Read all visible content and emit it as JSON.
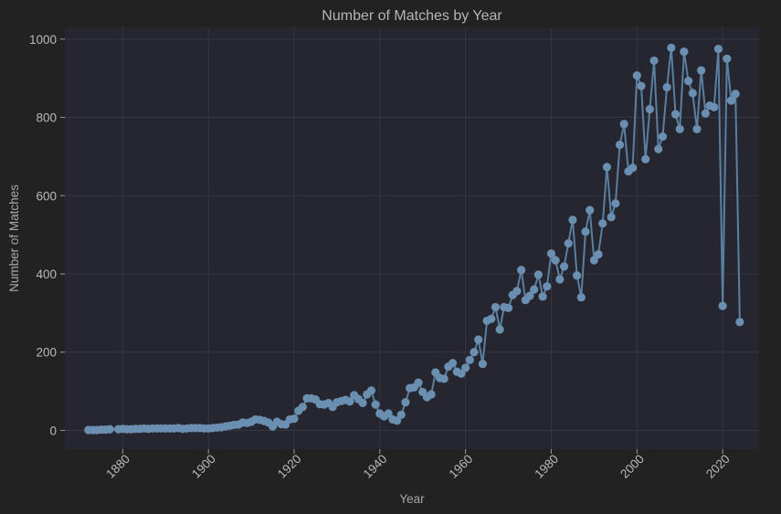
{
  "chart_data": {
    "type": "line",
    "title": "Number of Matches by Year",
    "xlabel": "Year",
    "ylabel": "Number of Matches",
    "xlim": [
      1866.5,
      1827.5
    ],
    "ylim": [
      -48,
      1030
    ],
    "x_ticks": [
      1880,
      1900,
      1920,
      1940,
      1960,
      1980,
      2000,
      2020
    ],
    "y_ticks": [
      0,
      200,
      400,
      600,
      800,
      1000
    ],
    "grid": true,
    "colors": {
      "line": "#5b7f9f",
      "marker": "#6a8fb0",
      "plot_bg": "#252630",
      "figure_bg": "#222222"
    },
    "series": [
      {
        "x": [
          1872,
          1873,
          1874,
          1875,
          1876,
          1877,
          1879,
          1880,
          1881,
          1882,
          1883,
          1884,
          1885,
          1886,
          1887,
          1888,
          1889,
          1890,
          1891,
          1892,
          1893,
          1894,
          1895,
          1896,
          1897,
          1898,
          1899,
          1900,
          1901,
          1902,
          1903,
          1904,
          1905,
          1906,
          1907,
          1908,
          1909,
          1910,
          1911,
          1912,
          1913,
          1914,
          1915,
          1916,
          1917,
          1918,
          1919,
          1920,
          1921,
          1922,
          1923,
          1924,
          1925,
          1926,
          1927,
          1928,
          1929,
          1930,
          1931,
          1932,
          1933,
          1934,
          1935,
          1936,
          1937,
          1938,
          1939,
          1940,
          1941,
          1942,
          1943,
          1944,
          1945,
          1946,
          1947,
          1948,
          1949,
          1950,
          1951,
          1952,
          1953,
          1954,
          1955,
          1956,
          1957,
          1958,
          1959,
          1960,
          1961,
          1962,
          1963,
          1964,
          1965,
          1966,
          1967,
          1968,
          1969,
          1970,
          1971,
          1972,
          1973,
          1974,
          1975,
          1976,
          1977,
          1978,
          1979,
          1980,
          1981,
          1982,
          1983,
          1984,
          1985,
          1986,
          1987,
          1988,
          1989,
          1990,
          1991,
          1992,
          1993,
          1994,
          1995,
          1996,
          1997,
          1998,
          1999,
          2000,
          2001,
          2002,
          2003,
          2004,
          2005,
          2006,
          2007,
          2008,
          2009,
          2010,
          2011,
          2012,
          2013,
          2014,
          2015,
          2016,
          2017,
          2018,
          2019,
          2020,
          2021,
          2022,
          2023,
          2024
        ],
        "y": [
          1,
          1,
          1,
          2,
          2,
          3,
          3,
          4,
          3,
          3,
          4,
          4,
          5,
          4,
          5,
          5,
          5,
          5,
          5,
          5,
          6,
          4,
          5,
          6,
          6,
          6,
          5,
          5,
          6,
          7,
          8,
          10,
          12,
          14,
          15,
          20,
          19,
          22,
          28,
          27,
          24,
          20,
          10,
          22,
          16,
          15,
          28,
          30,
          50,
          60,
          82,
          82,
          79,
          67,
          66,
          70,
          60,
          72,
          75,
          78,
          74,
          90,
          80,
          70,
          92,
          102,
          66,
          43,
          36,
          43,
          28,
          25,
          40,
          72,
          108,
          110,
          122,
          98,
          85,
          92,
          148,
          134,
          132,
          163,
          172,
          150,
          145,
          160,
          180,
          200,
          232,
          170,
          280,
          285,
          315,
          258,
          315,
          313,
          346,
          356,
          410,
          333,
          344,
          360,
          398,
          342,
          368,
          452,
          435,
          386,
          419,
          478,
          538,
          396,
          340,
          508,
          563,
          435,
          450,
          529,
          673,
          545,
          580,
          730,
          783,
          662,
          671,
          907,
          880,
          693,
          821,
          945,
          719,
          751,
          877,
          978,
          808,
          770,
          968,
          893,
          862,
          770,
          920,
          810,
          830,
          826,
          975,
          318,
          950,
          843,
          860,
          277
        ]
      }
    ]
  }
}
